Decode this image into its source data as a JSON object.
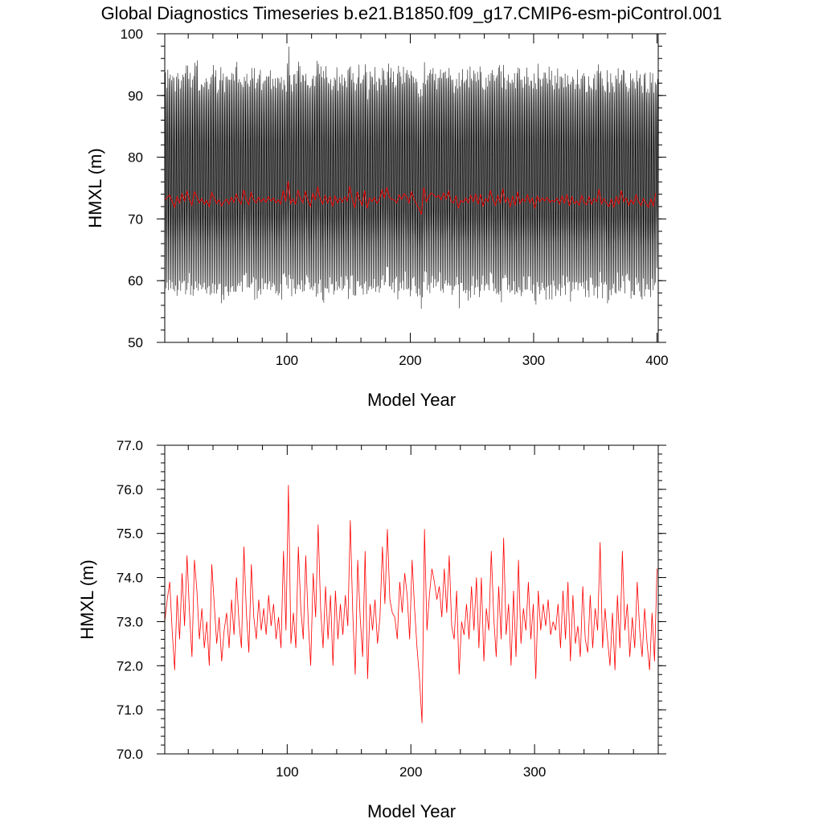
{
  "title": "Global Diagnostics Timeseries b.e21.B1850.f09_g17.CMIP6-esm-piControl.001",
  "colors": {
    "monthly": "#000000",
    "annual": "#ff0000"
  },
  "chart_data": [
    {
      "type": "line",
      "xlabel": "Model Year",
      "ylabel": "HMXL (m)",
      "xlim": [
        1,
        401
      ],
      "ylim": [
        50,
        100
      ],
      "xticks": [
        100,
        200,
        300,
        400
      ],
      "xtick_labels": [
        "100",
        "200",
        "300",
        "400"
      ],
      "yticks": [
        50,
        60,
        70,
        80,
        90,
        100
      ],
      "ytick_labels": [
        "50",
        "60",
        "70",
        "80",
        "90",
        "100"
      ],
      "series": [
        {
          "resolution": "monthly",
          "color": "#000000",
          "seasonal_range_min_approx": 57,
          "seasonal_range_max_approx": 93,
          "overall_min_approx": 55.5,
          "overall_max_approx": 96.5
        },
        {
          "resolution": "annual",
          "color": "#ff0000",
          "mean_approx": 73.2,
          "range_approx": [
            71.5,
            75.5
          ]
        }
      ]
    },
    {
      "type": "line",
      "xlabel": "Model Year",
      "ylabel": "HMXL (m)",
      "xlim": [
        1,
        400
      ],
      "ylim": [
        70.0,
        77.0
      ],
      "xticks": [
        100,
        200,
        300
      ],
      "xtick_labels": [
        "100",
        "200",
        "300"
      ],
      "yticks": [
        70,
        71,
        72,
        73,
        74,
        75,
        76,
        77
      ],
      "ytick_labels": [
        "70.0",
        "71.0",
        "72.0",
        "73.0",
        "74.0",
        "75.0",
        "76.0",
        "77.0"
      ],
      "series": [
        {
          "resolution": "annual",
          "color": "#ff0000",
          "x": [
            1,
            3,
            5,
            7,
            9,
            11,
            13,
            15,
            17,
            19,
            21,
            23,
            25,
            27,
            29,
            31,
            33,
            35,
            37,
            39,
            41,
            43,
            45,
            47,
            49,
            51,
            53,
            55,
            57,
            59,
            61,
            63,
            65,
            67,
            69,
            71,
            73,
            75,
            77,
            79,
            81,
            83,
            85,
            87,
            89,
            91,
            93,
            95,
            97,
            99,
            101,
            103,
            105,
            107,
            109,
            111,
            113,
            115,
            117,
            119,
            121,
            123,
            125,
            127,
            129,
            131,
            133,
            135,
            137,
            139,
            141,
            143,
            145,
            147,
            149,
            151,
            153,
            155,
            157,
            159,
            161,
            163,
            165,
            167,
            169,
            171,
            173,
            175,
            177,
            179,
            181,
            183,
            185,
            187,
            189,
            191,
            193,
            195,
            197,
            199,
            201,
            203,
            205,
            207,
            209,
            211,
            213,
            215,
            217,
            219,
            221,
            223,
            225,
            227,
            229,
            231,
            233,
            235,
            237,
            239,
            241,
            243,
            245,
            247,
            249,
            251,
            253,
            255,
            257,
            259,
            261,
            263,
            265,
            267,
            269,
            271,
            273,
            275,
            277,
            279,
            281,
            283,
            285,
            287,
            289,
            291,
            293,
            295,
            297,
            299,
            301,
            303,
            305,
            307,
            309,
            311,
            313,
            315,
            317,
            319,
            321,
            323,
            325,
            327,
            329,
            331,
            333,
            335,
            337,
            339,
            341,
            343,
            345,
            347,
            349,
            351,
            353,
            355,
            357,
            359,
            361,
            363,
            365,
            367,
            369,
            371,
            373,
            375,
            377,
            379,
            381,
            383,
            385,
            387,
            389,
            391,
            393,
            395,
            397,
            399
          ],
          "values": [
            73.0,
            73.5,
            73.9,
            72.8,
            71.9,
            73.6,
            72.6,
            74.1,
            72.9,
            74.5,
            73.2,
            72.2,
            74.4,
            73.7,
            72.6,
            73.3,
            72.4,
            73.0,
            72.0,
            74.3,
            73.4,
            72.5,
            73.1,
            72.1,
            72.8,
            73.2,
            72.4,
            73.5,
            72.7,
            74.0,
            73.0,
            72.4,
            74.7,
            73.2,
            72.3,
            74.3,
            73.1,
            72.6,
            73.5,
            72.8,
            73.3,
            72.7,
            73.6,
            72.9,
            73.4,
            72.6,
            73.1,
            72.4,
            74.6,
            72.8,
            76.1,
            72.5,
            73.2,
            72.4,
            74.7,
            73.3,
            72.6,
            74.5,
            73.0,
            72.0,
            74.1,
            73.1,
            75.2,
            73.3,
            72.4,
            73.8,
            72.6,
            73.6,
            72.0,
            73.7,
            72.6,
            73.4,
            72.7,
            73.6,
            72.9,
            75.3,
            73.2,
            71.8,
            74.4,
            73.1,
            72.2,
            74.6,
            71.7,
            73.4,
            72.8,
            73.5,
            72.5,
            73.1,
            74.7,
            73.4,
            75.1,
            73.5,
            73.2,
            73.1,
            72.6,
            73.9,
            73.2,
            74.1,
            73.6,
            72.6,
            74.4,
            73.3,
            72.4,
            71.7,
            70.7,
            75.1,
            72.8,
            73.6,
            74.2,
            73.9,
            73.5,
            73.8,
            73.1,
            74.2,
            73.2,
            74.5,
            72.9,
            72.6,
            73.7,
            71.8,
            73.0,
            72.7,
            73.4,
            72.6,
            73.8,
            72.8,
            74.0,
            72.4,
            74.0,
            72.1,
            73.3,
            72.8,
            74.6,
            73.1,
            72.2,
            73.8,
            72.6,
            74.9,
            72.7,
            73.4,
            72.0,
            73.7,
            72.2,
            74.4,
            72.5,
            73.3,
            72.8,
            73.9,
            72.6,
            73.4,
            71.7,
            73.7,
            72.8,
            73.4,
            72.9,
            73.5,
            72.7,
            73.0,
            72.8,
            73.4,
            72.4,
            73.7,
            72.6,
            73.9,
            72.1,
            73.6,
            72.5,
            72.9,
            72.2,
            73.8,
            72.6,
            72.3,
            73.6,
            72.4,
            73.3,
            72.8,
            74.8,
            72.4,
            73.3,
            72.6,
            72.0,
            73.2,
            71.9,
            73.6,
            72.4,
            74.6,
            72.8,
            73.4,
            72.2,
            73.1,
            72.4,
            73.9,
            72.8,
            72.2,
            73.3,
            72.5,
            71.9,
            73.2,
            72.1,
            74.2
          ]
        }
      ]
    }
  ]
}
